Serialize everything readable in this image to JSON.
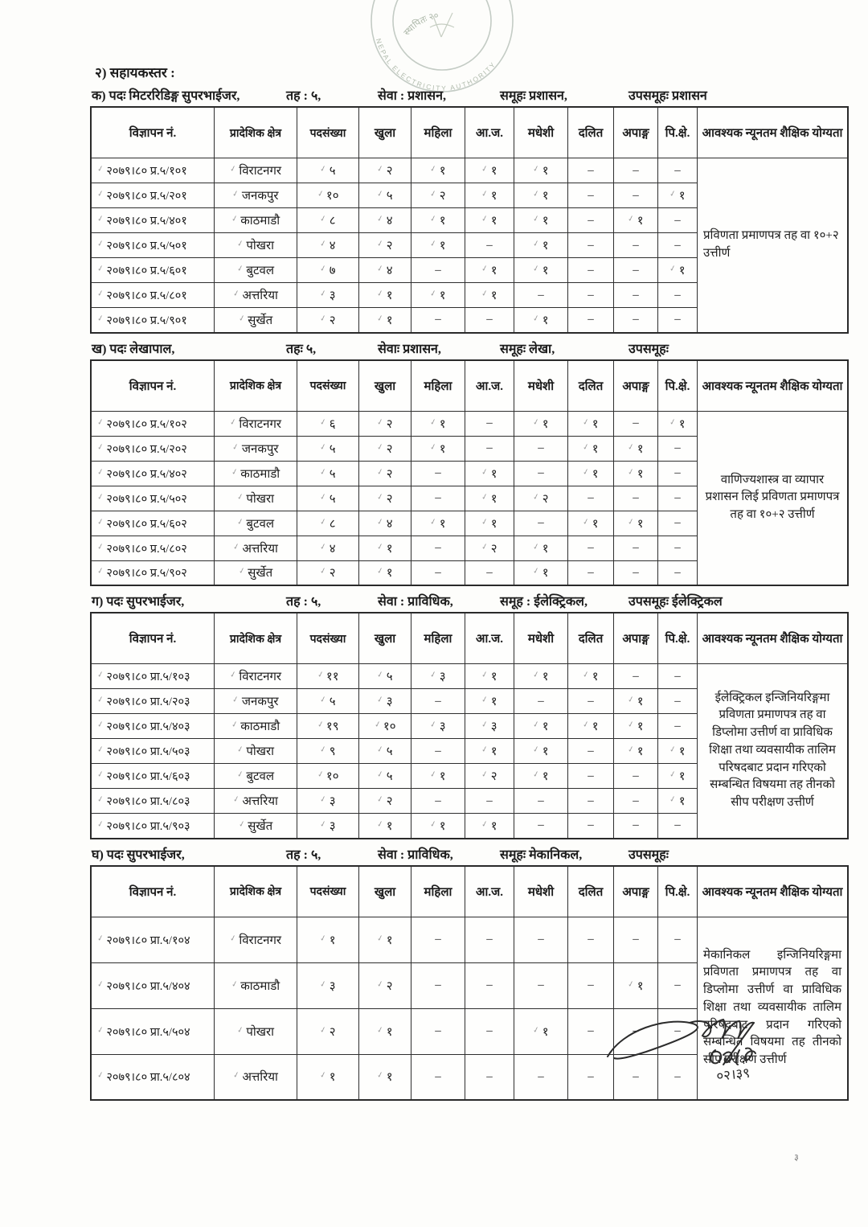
{
  "page": {
    "section_title": "२) सहायकस्तर :",
    "page_number": "३"
  },
  "stamp": {
    "inner_text": "स्थापितः २०",
    "arc_text": "NEPAL ELECTRICITY AUTHORITY"
  },
  "signature": {
    "note": "०२।३९"
  },
  "columns": [
    "विज्ञापन नं.",
    "प्रादेशिक क्षेत्र",
    "पदसंख्या",
    "खुला",
    "महिला",
    "आ.ज.",
    "मधेशी",
    "दलित",
    "अपाङ्ग",
    "पि.क्षे.",
    "आवश्यक न्यूनतम शैक्षिक योग्यता"
  ],
  "tables": [
    {
      "label": "क) पदः मिटररिडिङ्ग सुपरभाईजर,",
      "level": "तह : ५,",
      "service": "सेवा : प्रशासन,",
      "group": "समूहः प्रशासन,",
      "subgroup": "उपसमूहः प्रशासन",
      "education": "प्रविणता प्रमाणपत्र तह वा १०+२ उत्तीर्ण",
      "rows": [
        [
          "२०७९।८० प्र.५/१०१",
          "विराटनगर",
          "५",
          "२",
          "१",
          "१",
          "१",
          "–",
          "–",
          "–"
        ],
        [
          "२०७९।८० प्र.५/२०१",
          "जनकपुर",
          "१०",
          "५",
          "२",
          "१",
          "१",
          "–",
          "–",
          "१"
        ],
        [
          "२०७९।८० प्र.५/४०१",
          "काठमाडौ",
          "८",
          "४",
          "१",
          "१",
          "१",
          "–",
          "१",
          "–"
        ],
        [
          "२०७९।८० प्र.५/५०१",
          "पोखरा",
          "४",
          "२",
          "१",
          "–",
          "१",
          "–",
          "–",
          "–"
        ],
        [
          "२०७९।८० प्र.५/६०१",
          "बुटवल",
          "७",
          "४",
          "–",
          "१",
          "१",
          "–",
          "–",
          "१"
        ],
        [
          "२०७९।८० प्र.५/८०१",
          "अत्तरिया",
          "३",
          "१",
          "१",
          "१",
          "–",
          "–",
          "–",
          "–"
        ],
        [
          "२०७९।८० प्र.५/९०१",
          "सुर्खेत",
          "२",
          "१",
          "–",
          "–",
          "१",
          "–",
          "–",
          "–"
        ]
      ]
    },
    {
      "label": "ख) पदः लेखापाल,",
      "level": "तहः ५,",
      "service": "सेवाः प्रशासन,",
      "group": "समूहः लेखा,",
      "subgroup": "उपसमूहः",
      "education": "वाणिज्यशास्त्र वा व्यापार प्रशासन लिई प्रविणता प्रमाणपत्र तह वा १०+२ उत्तीर्ण",
      "rows": [
        [
          "२०७९।८० प्र.५/१०२",
          "विराटनगर",
          "६",
          "२",
          "१",
          "–",
          "१",
          "१",
          "–",
          "१"
        ],
        [
          "२०७९।८० प्र.५/२०२",
          "जनकपुर",
          "५",
          "२",
          "१",
          "–",
          "–",
          "१",
          "१",
          "–"
        ],
        [
          "२०७९।८० प्र.५/४०२",
          "काठमाडौ",
          "५",
          "२",
          "–",
          "१",
          "–",
          "१",
          "१",
          "–"
        ],
        [
          "२०७९।८० प्र.५/५०२",
          "पोखरा",
          "५",
          "२",
          "–",
          "१",
          "२",
          "–",
          "–",
          "–"
        ],
        [
          "२०७९।८० प्र.५/६०२",
          "बुटवल",
          "८",
          "४",
          "१",
          "१",
          "–",
          "१",
          "१",
          "–"
        ],
        [
          "२०७९।८० प्र.५/८०२",
          "अत्तरिया",
          "४",
          "१",
          "–",
          "२",
          "१",
          "–",
          "–",
          "–"
        ],
        [
          "२०७९।८० प्र.५/९०२",
          "सुर्खेत",
          "२",
          "१",
          "–",
          "–",
          "१",
          "–",
          "–",
          "–"
        ]
      ]
    },
    {
      "label": "ग) पदः सुपरभाईजर,",
      "level": "तह : ५,",
      "service": "सेवा : प्राविधिक,",
      "group": "समूह : ईलेक्ट्रिकल,",
      "subgroup": "उपसमूहः ईलेक्ट्रिकल",
      "education": "ईलेक्ट्रिकल इन्जिनियरिङ्गमा प्रविणता प्रमाणपत्र तह वा डिप्लोमा उत्तीर्ण वा प्राविधिक शिक्षा तथा व्यवसायीक तालिम परिषदबाट प्रदान गरिएको सम्बन्धित विषयमा तह तीनको सीप परीक्षण उत्तीर्ण",
      "rows": [
        [
          "२०७९।८० प्रा.५/१०३",
          "विराटनगर",
          "११",
          "५",
          "३",
          "१",
          "१",
          "१",
          "–",
          "–"
        ],
        [
          "२०७९।८० प्रा.५/२०३",
          "जनकपुर",
          "५",
          "३",
          "–",
          "१",
          "–",
          "–",
          "१",
          "–"
        ],
        [
          "२०७९।८० प्रा.५/४०३",
          "काठमाडौ",
          "१९",
          "१०",
          "३",
          "३",
          "१",
          "१",
          "१",
          "–"
        ],
        [
          "२०७९।८० प्रा.५/५०३",
          "पोखरा",
          "९",
          "५",
          "–",
          "१",
          "१",
          "–",
          "१",
          "१"
        ],
        [
          "२०७९।८० प्रा.५/६०३",
          "बुटवल",
          "१०",
          "५",
          "१",
          "२",
          "१",
          "–",
          "–",
          "१"
        ],
        [
          "२०७९।८० प्रा.५/८०३",
          "अत्तरिया",
          "३",
          "२",
          "–",
          "–",
          "–",
          "–",
          "–",
          "१"
        ],
        [
          "२०७९।८० प्रा.५/९०३",
          "सुर्खेत",
          "३",
          "१",
          "१",
          "१",
          "–",
          "–",
          "–",
          "–"
        ]
      ]
    },
    {
      "label": "घ) पदः सुपरभाईजर,",
      "level": "तह : ५,",
      "service": "सेवा : प्राविधिक,",
      "group": "समूहः मेकानिकल,",
      "subgroup": "उपसमूहः",
      "education": "मेकानिकल इन्जिनियरिङ्गमा प्रविणता प्रमाणपत्र तह वा डिप्लोमा उत्तीर्ण वा प्राविधिक शिक्षा तथा व्यवसायीक तालिम परिषदबाट प्रदान गरिएको सम्बन्धित विषयमा तह तीनको सीप परीक्षण उत्तीर्ण",
      "rows": [
        [
          "२०७९।८० प्रा.५/१०४",
          "विराटनगर",
          "१",
          "१",
          "–",
          "–",
          "–",
          "–",
          "–",
          "–"
        ],
        [
          "२०७९।८० प्रा.५/४०४",
          "काठमाडौ",
          "३",
          "२",
          "–",
          "–",
          "–",
          "–",
          "१",
          "–"
        ],
        [
          "२०७९।८० प्रा.५/५०४",
          "पोखरा",
          "२",
          "१",
          "–",
          "–",
          "१",
          "–",
          "–",
          "–"
        ],
        [
          "२०७९।८० प्रा.५/८०४",
          "अत्तरिया",
          "१",
          "१",
          "–",
          "–",
          "–",
          "–",
          "–",
          "–"
        ]
      ]
    }
  ]
}
